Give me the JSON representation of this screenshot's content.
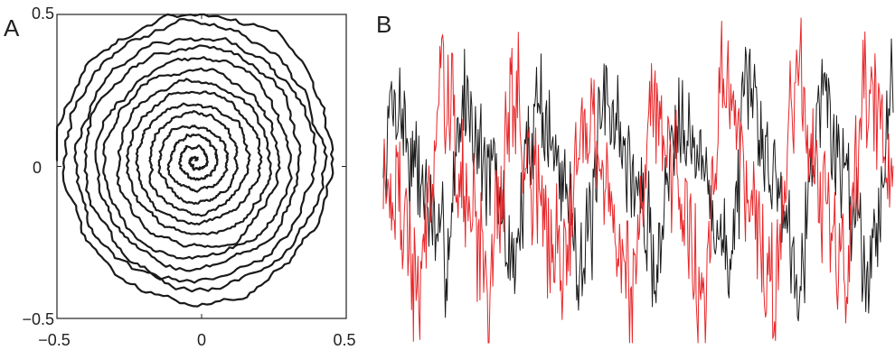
{
  "panels": {
    "a_label": "A",
    "b_label": "B"
  },
  "chart_data": [
    {
      "type": "line",
      "panel": "A",
      "description_kind": "spiral trajectory",
      "xlim": [
        -0.5,
        0.5
      ],
      "ylim": [
        -0.5,
        0.5
      ],
      "x_ticks": [
        -0.5,
        0,
        0.5
      ],
      "y_ticks": [
        -0.5,
        0,
        0.5
      ],
      "x_tick_labels": [
        "−0.5",
        "0",
        "0.5"
      ],
      "y_tick_labels": [
        "−0.5",
        "0",
        "0.5"
      ],
      "grid": false,
      "series": [
        {
          "color": "#1a1a1a",
          "spiral": {
            "center": [
              -0.02,
              0.02
            ],
            "r_start": 0.0,
            "r_end": 0.49,
            "turns": 13.5
          }
        }
      ]
    },
    {
      "type": "line",
      "panel": "B",
      "axes_visible": false,
      "grid": false,
      "samples": 560,
      "series": [
        {
          "color": "#1a1a1a",
          "period": 78,
          "phase": 0.0,
          "mean": 0.1,
          "amplitude": 0.55,
          "noise": 0.35,
          "seed": 7
        },
        {
          "color": "#e8272a",
          "period": 78,
          "phase": 0.35,
          "mean": 0.0,
          "amplitude": 0.65,
          "noise": 0.42,
          "seed": 19
        }
      ]
    }
  ]
}
